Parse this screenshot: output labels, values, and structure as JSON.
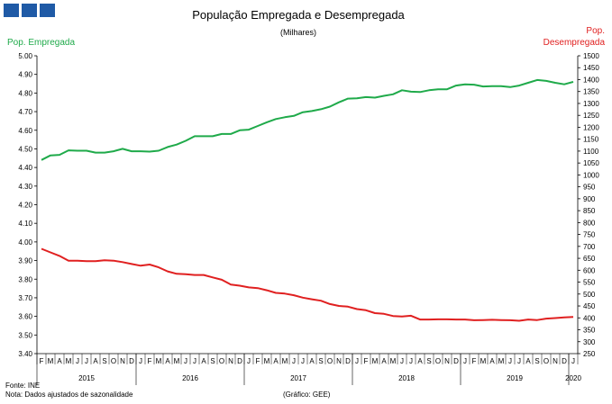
{
  "chart_data": {
    "type": "line",
    "title": "População Empregada e Desempregada",
    "subtitle": "(Milhares)",
    "ylabel_left": "Pop. Empregada",
    "ylabel_right": [
      "Pop.",
      "Desempregada"
    ],
    "ylim_left": [
      3.4,
      5.0
    ],
    "ylim_right": [
      250,
      1500
    ],
    "yticks_left": [
      "5.00",
      "4.90",
      "4.80",
      "4.70",
      "4.60",
      "4.50",
      "4.40",
      "4.30",
      "4.20",
      "4.10",
      "4.00",
      "3.90",
      "3.80",
      "3.70",
      "3.60",
      "3.50",
      "3.40"
    ],
    "yticks_right": [
      "1500",
      "1450",
      "1400",
      "1350",
      "1300",
      "1250",
      "1200",
      "1150",
      "1100",
      "1050",
      "1000",
      "950",
      "900",
      "850",
      "800",
      "750",
      "700",
      "650",
      "600",
      "550",
      "500",
      "450",
      "400",
      "350",
      "300",
      "250"
    ],
    "month_labels": [
      "F",
      "M",
      "A",
      "M",
      "J",
      "J",
      "A",
      "S",
      "O",
      "N",
      "D",
      "J",
      "F",
      "M",
      "A",
      "M",
      "J",
      "J",
      "A",
      "S",
      "O",
      "N",
      "D",
      "J",
      "F",
      "M",
      "A",
      "M",
      "J",
      "J",
      "A",
      "S",
      "O",
      "N",
      "D",
      "J",
      "F",
      "M",
      "A",
      "M",
      "J",
      "J",
      "A",
      "S",
      "O",
      "N",
      "D",
      "J",
      "F",
      "M",
      "A",
      "M",
      "J",
      "J",
      "A",
      "S",
      "O",
      "N",
      "D",
      "J"
    ],
    "year_labels": [
      "2015",
      "2016",
      "2017",
      "2018",
      "2019",
      "2020"
    ],
    "series": [
      {
        "name": "Pop. Empregada",
        "axis": "left",
        "color": "#1faa4a",
        "values": [
          4.44,
          4.465,
          4.468,
          4.492,
          4.49,
          4.49,
          4.48,
          4.48,
          4.487,
          4.5,
          4.487,
          4.487,
          4.485,
          4.49,
          4.51,
          4.523,
          4.543,
          4.568,
          4.568,
          4.568,
          4.58,
          4.58,
          4.6,
          4.603,
          4.623,
          4.643,
          4.66,
          4.67,
          4.677,
          4.697,
          4.703,
          4.713,
          4.727,
          4.75,
          4.77,
          4.772,
          4.778,
          4.775,
          4.785,
          4.793,
          4.815,
          4.807,
          4.805,
          4.815,
          4.82,
          4.82,
          4.84,
          4.847,
          4.845,
          4.835,
          4.837,
          4.837,
          4.832,
          4.84,
          4.855,
          4.87,
          4.865,
          4.855,
          4.847,
          4.86
        ]
      },
      {
        "name": "Pop. Desempregada",
        "axis": "right",
        "color": "#e02020",
        "values": [
          690,
          675,
          660,
          640,
          640,
          638,
          638,
          642,
          640,
          634,
          626,
          619,
          624,
          612,
          595,
          585,
          583,
          580,
          580,
          570,
          560,
          540,
          535,
          528,
          525,
          516,
          505,
          502,
          495,
          485,
          478,
          472,
          458,
          450,
          447,
          437,
          432,
          420,
          417,
          408,
          406,
          409,
          393,
          393,
          394,
          394,
          393,
          393,
          390,
          391,
          392,
          391,
          390,
          388,
          393,
          391,
          397,
          399,
          402,
          404
        ]
      }
    ]
  },
  "footer": {
    "source": "Fonte: INE",
    "note": "Nota: Dados ajustados de sazonalidade",
    "credit": "(Gráfico: GEE)"
  },
  "colors": {
    "logo": "#1f5aa6",
    "employed": "#1faa4a",
    "unemployed": "#e02020"
  }
}
